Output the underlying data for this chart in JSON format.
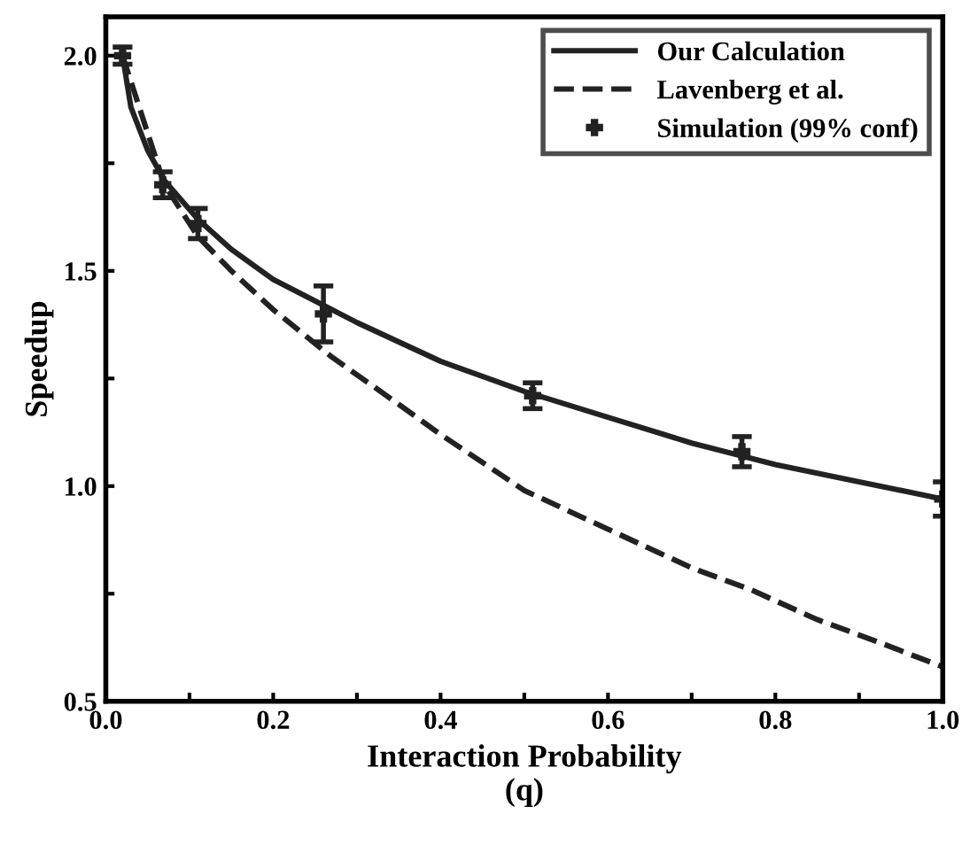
{
  "chart_data": {
    "type": "line",
    "xlabel": "Interaction Probability\n(q)",
    "ylabel": "Speedup",
    "xlim": [
      0,
      1.0
    ],
    "ylim": [
      0.5,
      2.09
    ],
    "xticks": [
      {
        "value": 0,
        "label": "0.0"
      },
      {
        "value": 0.1,
        "label": null
      },
      0.2,
      {
        "value": 0.3,
        "label": null
      },
      0.4,
      {
        "value": 0.5,
        "label": null
      },
      0.6,
      {
        "value": 0.7,
        "label": null
      },
      0.8,
      {
        "value": 0.9,
        "label": null
      },
      {
        "value": 1,
        "label": "1.0"
      }
    ],
    "yticks": [
      0.5,
      {
        "value": 0.75,
        "label": null
      },
      {
        "value": 1,
        "label": "1.0"
      },
      {
        "value": 1.25,
        "label": null
      },
      1.5,
      {
        "value": 1.75,
        "label": null
      },
      {
        "value": 2,
        "label": "2.0"
      }
    ],
    "grid": false,
    "legend": "top right",
    "series": [
      {
        "name": "Our Calculation",
        "line_style": "solid",
        "color": "#222222",
        "x": [
          0.02,
          0.03,
          0.05,
          0.07,
          0.11,
          0.15,
          0.2,
          0.25,
          0.3,
          0.4,
          0.5,
          0.6,
          0.7,
          0.8,
          0.9,
          1.0
        ],
        "values": [
          2.0,
          1.88,
          1.78,
          1.71,
          1.62,
          1.55,
          1.48,
          1.43,
          1.38,
          1.29,
          1.22,
          1.16,
          1.1,
          1.05,
          1.01,
          0.97
        ]
      },
      {
        "name": "Lavenberg et al.",
        "line_style": "dashed",
        "color": "#222222",
        "x": [
          0.02,
          0.07,
          0.11,
          0.15,
          0.2,
          0.27,
          0.35,
          0.4,
          0.5,
          0.6,
          0.7,
          0.77,
          0.85,
          0.92,
          1.0
        ],
        "values": [
          2.0,
          1.7,
          1.58,
          1.5,
          1.41,
          1.3,
          1.19,
          1.12,
          0.99,
          0.9,
          0.81,
          0.76,
          0.69,
          0.64,
          0.58
        ]
      },
      {
        "name": "Simulation (99% conf)",
        "type": "scatter",
        "marker": "cross",
        "color": "#222222",
        "x": [
          0.02,
          0.068,
          0.11,
          0.26,
          0.51,
          0.76,
          1.0
        ],
        "values": [
          2.0,
          1.7,
          1.61,
          1.4,
          1.21,
          1.08,
          0.97
        ],
        "errors": [
          0.02,
          0.03,
          0.035,
          0.065,
          0.03,
          0.035,
          0.04
        ]
      }
    ]
  }
}
